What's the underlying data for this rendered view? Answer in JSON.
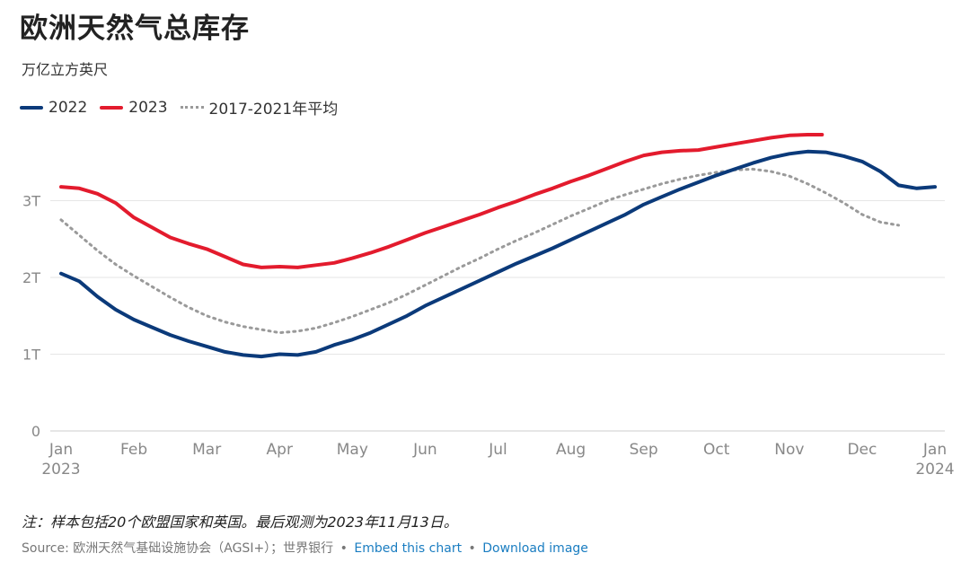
{
  "title": "欧洲天然气总库存",
  "subtitle": "万亿立方英尺",
  "note": "注：样本包括20个欧盟国家和英国。最后观测为2023年11月13日。",
  "source": {
    "prefix": "Source: 欧洲天然气基础设施协会（AGSI+）；世界银行",
    "separator": "•",
    "embed_label": "Embed this chart",
    "download_label": "Download image"
  },
  "colors": {
    "series_2022": "#0b3a7a",
    "series_2023": "#e31b2d",
    "series_avg": "#9a9a9a",
    "grid": "#e6e6e6",
    "axis": "#cccccc",
    "tick_text": "#888888"
  },
  "chart_data": {
    "type": "line",
    "title": "欧洲天然气总库存",
    "ylabel": "万亿立方英尺",
    "xlim": [
      0,
      12
    ],
    "ylim": [
      0,
      4
    ],
    "y_ticks": [
      {
        "value": 0,
        "label": "0"
      },
      {
        "value": 1,
        "label": "1T"
      },
      {
        "value": 2,
        "label": "2T"
      },
      {
        "value": 3,
        "label": "3T"
      }
    ],
    "x_ticks": [
      {
        "value": 0,
        "label": "Jan",
        "sublabel": "2023"
      },
      {
        "value": 1,
        "label": "Feb",
        "sublabel": ""
      },
      {
        "value": 2,
        "label": "Mar",
        "sublabel": ""
      },
      {
        "value": 3,
        "label": "Apr",
        "sublabel": ""
      },
      {
        "value": 4,
        "label": "May",
        "sublabel": ""
      },
      {
        "value": 5,
        "label": "Jun",
        "sublabel": ""
      },
      {
        "value": 6,
        "label": "Jul",
        "sublabel": ""
      },
      {
        "value": 7,
        "label": "Aug",
        "sublabel": ""
      },
      {
        "value": 8,
        "label": "Sep",
        "sublabel": ""
      },
      {
        "value": 9,
        "label": "Oct",
        "sublabel": ""
      },
      {
        "value": 10,
        "label": "Nov",
        "sublabel": ""
      },
      {
        "value": 11,
        "label": "Dec",
        "sublabel": ""
      },
      {
        "value": 12,
        "label": "Jan",
        "sublabel": "2024"
      }
    ],
    "grid": true,
    "legend_position": "top-left",
    "series": [
      {
        "name": "2022",
        "style": "solid",
        "color": "#0b3a7a",
        "points": [
          [
            0,
            2.05
          ],
          [
            0.25,
            1.95
          ],
          [
            0.5,
            1.75
          ],
          [
            0.75,
            1.58
          ],
          [
            1,
            1.45
          ],
          [
            1.25,
            1.35
          ],
          [
            1.5,
            1.25
          ],
          [
            1.75,
            1.17
          ],
          [
            2,
            1.1
          ],
          [
            2.25,
            1.03
          ],
          [
            2.5,
            0.99
          ],
          [
            2.75,
            0.97
          ],
          [
            3,
            1.0
          ],
          [
            3.25,
            0.99
          ],
          [
            3.5,
            1.03
          ],
          [
            3.75,
            1.12
          ],
          [
            4,
            1.19
          ],
          [
            4.25,
            1.28
          ],
          [
            4.5,
            1.39
          ],
          [
            4.75,
            1.5
          ],
          [
            5,
            1.63
          ],
          [
            5.25,
            1.74
          ],
          [
            5.5,
            1.85
          ],
          [
            5.75,
            1.96
          ],
          [
            6,
            2.07
          ],
          [
            6.25,
            2.18
          ],
          [
            6.5,
            2.28
          ],
          [
            6.75,
            2.38
          ],
          [
            7,
            2.49
          ],
          [
            7.25,
            2.6
          ],
          [
            7.5,
            2.71
          ],
          [
            7.75,
            2.82
          ],
          [
            8,
            2.95
          ],
          [
            8.25,
            3.05
          ],
          [
            8.5,
            3.15
          ],
          [
            8.75,
            3.24
          ],
          [
            9,
            3.33
          ],
          [
            9.25,
            3.41
          ],
          [
            9.5,
            3.49
          ],
          [
            9.75,
            3.56
          ],
          [
            10,
            3.61
          ],
          [
            10.25,
            3.64
          ],
          [
            10.5,
            3.63
          ],
          [
            10.75,
            3.58
          ],
          [
            11,
            3.51
          ],
          [
            11.25,
            3.38
          ],
          [
            11.5,
            3.2
          ],
          [
            11.75,
            3.16
          ],
          [
            12,
            3.18
          ]
        ]
      },
      {
        "name": "2023",
        "style": "solid",
        "color": "#e31b2d",
        "points": [
          [
            0,
            3.18
          ],
          [
            0.25,
            3.16
          ],
          [
            0.5,
            3.09
          ],
          [
            0.75,
            2.97
          ],
          [
            1,
            2.78
          ],
          [
            1.25,
            2.65
          ],
          [
            1.5,
            2.52
          ],
          [
            1.75,
            2.44
          ],
          [
            2,
            2.37
          ],
          [
            2.25,
            2.27
          ],
          [
            2.5,
            2.17
          ],
          [
            2.75,
            2.13
          ],
          [
            3,
            2.14
          ],
          [
            3.25,
            2.13
          ],
          [
            3.5,
            2.16
          ],
          [
            3.75,
            2.19
          ],
          [
            4,
            2.25
          ],
          [
            4.25,
            2.32
          ],
          [
            4.5,
            2.4
          ],
          [
            4.75,
            2.49
          ],
          [
            5,
            2.58
          ],
          [
            5.25,
            2.66
          ],
          [
            5.5,
            2.74
          ],
          [
            5.75,
            2.82
          ],
          [
            6,
            2.91
          ],
          [
            6.25,
            2.99
          ],
          [
            6.5,
            3.08
          ],
          [
            6.75,
            3.16
          ],
          [
            7,
            3.25
          ],
          [
            7.25,
            3.33
          ],
          [
            7.5,
            3.42
          ],
          [
            7.75,
            3.51
          ],
          [
            8,
            3.59
          ],
          [
            8.25,
            3.63
          ],
          [
            8.5,
            3.65
          ],
          [
            8.75,
            3.66
          ],
          [
            9,
            3.7
          ],
          [
            9.25,
            3.74
          ],
          [
            9.5,
            3.78
          ],
          [
            9.75,
            3.82
          ],
          [
            10,
            3.85
          ],
          [
            10.25,
            3.86
          ],
          [
            10.45,
            3.86
          ]
        ]
      },
      {
        "name": "2017-2021年平均",
        "style": "dotted",
        "color": "#9a9a9a",
        "points": [
          [
            0,
            2.75
          ],
          [
            0.25,
            2.55
          ],
          [
            0.5,
            2.35
          ],
          [
            0.75,
            2.17
          ],
          [
            1,
            2.02
          ],
          [
            1.25,
            1.88
          ],
          [
            1.5,
            1.74
          ],
          [
            1.75,
            1.61
          ],
          [
            2,
            1.5
          ],
          [
            2.25,
            1.42
          ],
          [
            2.5,
            1.36
          ],
          [
            2.75,
            1.32
          ],
          [
            3,
            1.28
          ],
          [
            3.25,
            1.3
          ],
          [
            3.5,
            1.34
          ],
          [
            3.75,
            1.41
          ],
          [
            4,
            1.49
          ],
          [
            4.25,
            1.58
          ],
          [
            4.5,
            1.67
          ],
          [
            4.75,
            1.78
          ],
          [
            5,
            1.9
          ],
          [
            5.25,
            2.02
          ],
          [
            5.5,
            2.14
          ],
          [
            5.75,
            2.25
          ],
          [
            6,
            2.37
          ],
          [
            6.25,
            2.48
          ],
          [
            6.5,
            2.58
          ],
          [
            6.75,
            2.69
          ],
          [
            7,
            2.8
          ],
          [
            7.25,
            2.9
          ],
          [
            7.5,
            3.0
          ],
          [
            7.75,
            3.08
          ],
          [
            8,
            3.15
          ],
          [
            8.25,
            3.22
          ],
          [
            8.5,
            3.28
          ],
          [
            8.75,
            3.33
          ],
          [
            9,
            3.37
          ],
          [
            9.25,
            3.4
          ],
          [
            9.5,
            3.41
          ],
          [
            9.75,
            3.38
          ],
          [
            10,
            3.32
          ],
          [
            10.25,
            3.22
          ],
          [
            10.5,
            3.1
          ],
          [
            10.75,
            2.97
          ],
          [
            11,
            2.82
          ],
          [
            11.25,
            2.72
          ],
          [
            11.5,
            2.68
          ]
        ]
      }
    ]
  }
}
